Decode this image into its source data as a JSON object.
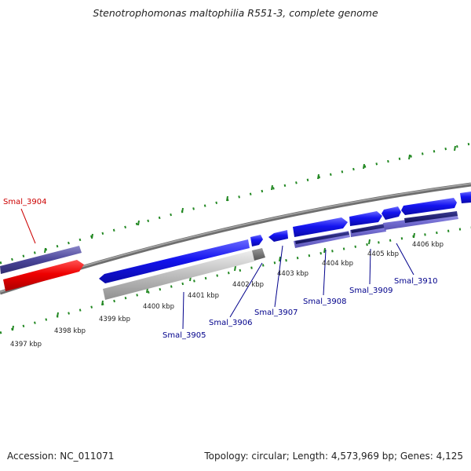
{
  "title": "Stenotrophomonas maltophilia R551-3, complete genome",
  "accession": "Accession: NC_011071",
  "summary": "Topology: circular; Length: 4,573,969 bp; Genes: 4,125",
  "colors": {
    "forward_gene": "#1010ee",
    "reverse_gene_selected": "#ee0000",
    "tick": "#228822",
    "backbone": "#888888",
    "label_default": "#00008b",
    "label_highlight": "#cc0000"
  },
  "ticks": [
    "4397 kbp",
    "4398 kbp",
    "4399 kbp",
    "4400 kbp",
    "4401 kbp",
    "4402 kbp",
    "4403 kbp",
    "4404 kbp",
    "4405 kbp",
    "4406 kbp"
  ],
  "genes": [
    {
      "label": "Smal_3904",
      "highlight": true
    },
    {
      "label": "Smal_3905",
      "highlight": false
    },
    {
      "label": "Smal_3906",
      "highlight": false
    },
    {
      "label": "Smal_3907",
      "highlight": false
    },
    {
      "label": "Smal_3908",
      "highlight": false
    },
    {
      "label": "Smal_3909",
      "highlight": false
    },
    {
      "label": "Smal_3910",
      "highlight": false
    }
  ]
}
